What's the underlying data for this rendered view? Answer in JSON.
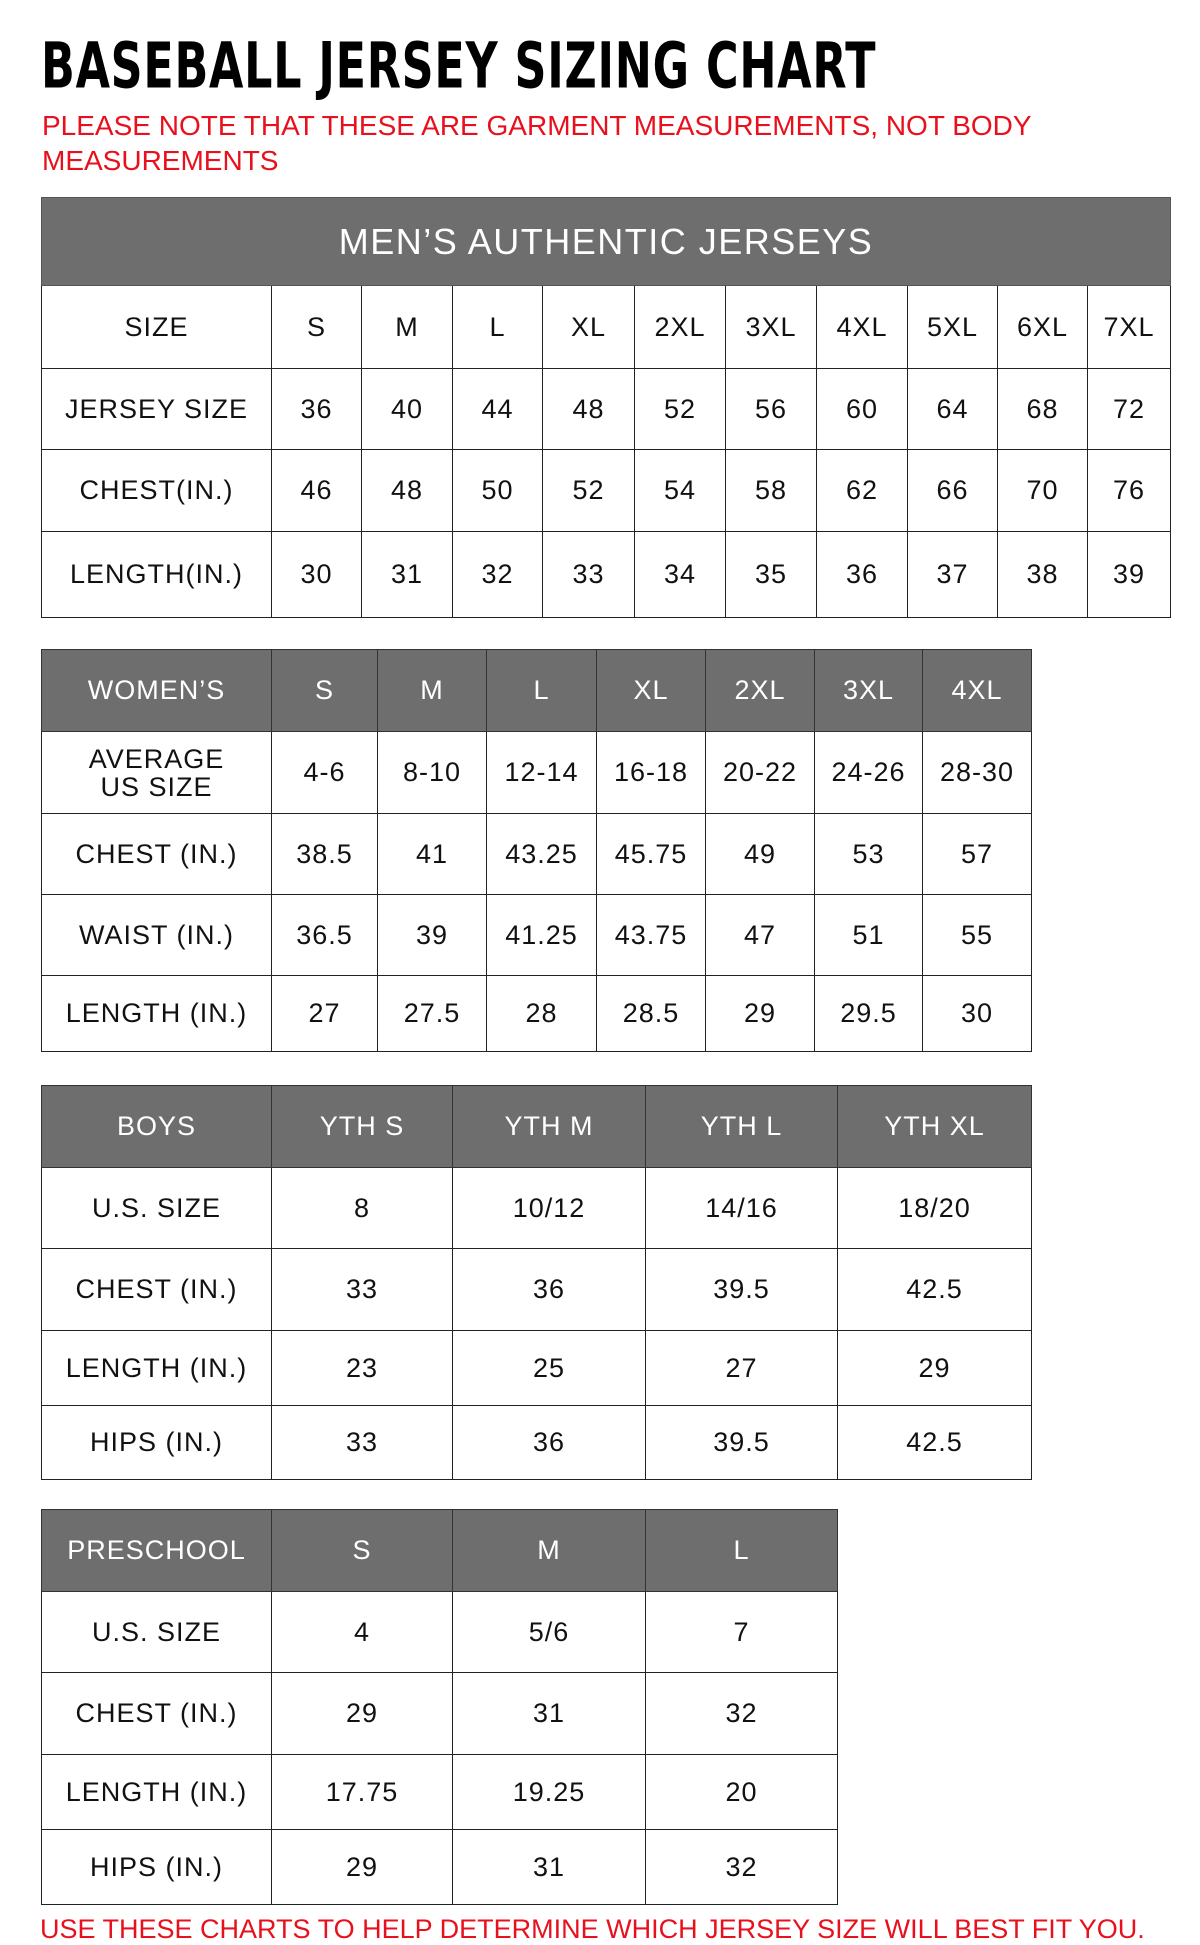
{
  "title": "BASEBALL JERSEY SIZING CHART",
  "note": "PLEASE NOTE THAT THESE ARE GARMENT MEASUREMENTS, NOT BODY MEASUREMENTS",
  "footer": "USE THESE CHARTS TO HELP DETERMINE WHICH JERSEY SIZE WILL BEST FIT YOU.",
  "colors": {
    "header_gray": "#6e6e6e",
    "note_red": "#e8101c"
  },
  "mens": {
    "banner": "MEN’S AUTHENTIC JERSEYS",
    "rows": [
      [
        "SIZE",
        "S",
        "M",
        "L",
        "XL",
        "2XL",
        "3XL",
        "4XL",
        "5XL",
        "6XL",
        "7XL"
      ],
      [
        "JERSEY SIZE",
        "36",
        "40",
        "44",
        "48",
        "52",
        "56",
        "60",
        "64",
        "68",
        "72"
      ],
      [
        "CHEST(IN.)",
        "46",
        "48",
        "50",
        "52",
        "54",
        "58",
        "62",
        "66",
        "70",
        "76"
      ],
      [
        "LENGTH(IN.)",
        "30",
        "31",
        "32",
        "33",
        "34",
        "35",
        "36",
        "37",
        "38",
        "39"
      ]
    ]
  },
  "womens": {
    "rows": [
      [
        "WOMEN’S",
        "S",
        "M",
        "L",
        "XL",
        "2XL",
        "3XL",
        "4XL"
      ],
      [
        "AVERAGE US SIZE",
        "4-6",
        "8-10",
        "12-14",
        "16-18",
        "20-22",
        "24-26",
        "28-30"
      ],
      [
        "CHEST (IN.)",
        "38.5",
        "41",
        "43.25",
        "45.75",
        "49",
        "53",
        "57"
      ],
      [
        "WAIST (IN.)",
        "36.5",
        "39",
        "41.25",
        "43.75",
        "47",
        "51",
        "55"
      ],
      [
        "LENGTH (IN.)",
        "27",
        "27.5",
        "28",
        "28.5",
        "29",
        "29.5",
        "30"
      ]
    ]
  },
  "boys": {
    "rows": [
      [
        "BOYS",
        "YTH S",
        "YTH M",
        "YTH L",
        "YTH XL"
      ],
      [
        "U.S. SIZE",
        "8",
        "10/12",
        "14/16",
        "18/20"
      ],
      [
        "CHEST (IN.)",
        "33",
        "36",
        "39.5",
        "42.5"
      ],
      [
        "LENGTH (IN.)",
        "23",
        "25",
        "27",
        "29"
      ],
      [
        "HIPS (IN.)",
        "33",
        "36",
        "39.5",
        "42.5"
      ]
    ]
  },
  "preschool": {
    "rows": [
      [
        "PRESCHOOL",
        "S",
        "M",
        "L"
      ],
      [
        "U.S. SIZE",
        "4",
        "5/6",
        "7"
      ],
      [
        "CHEST (IN.)",
        "29",
        "31",
        "32"
      ],
      [
        "LENGTH (IN.)",
        "17.75",
        "19.25",
        "20"
      ],
      [
        "HIPS (IN.)",
        "29",
        "31",
        "32"
      ]
    ]
  }
}
